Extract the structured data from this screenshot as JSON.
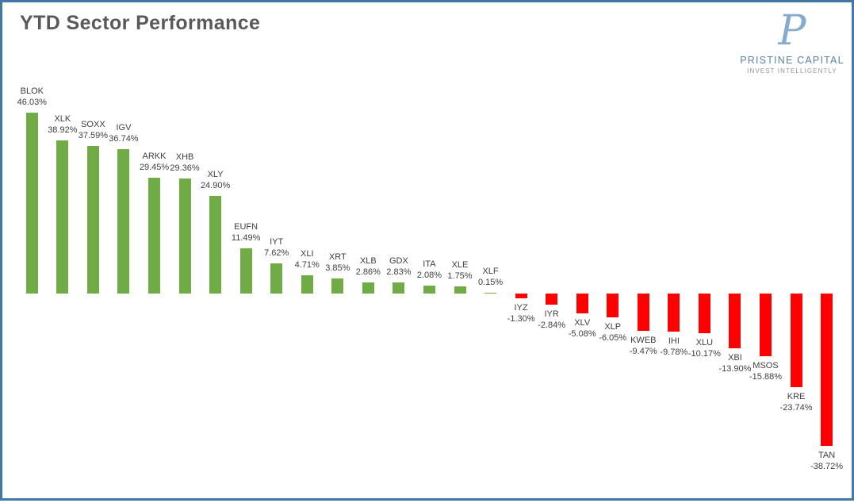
{
  "page": {
    "title": "YTD Sector Performance",
    "title_color": "#595959",
    "border_color": "#4377A6",
    "background": "#FFFFFF"
  },
  "logo": {
    "monogram": "P",
    "company": "PRISTINE CAPITAL",
    "tagline": "INVEST INTELLIGENTLY",
    "monogram_color": "#85ABCD",
    "company_color": "#5C81A6",
    "tagline_color": "#8E959C"
  },
  "chart_data": {
    "type": "bar",
    "title": "YTD Sector Performance",
    "xlabel": "",
    "ylabel": "",
    "unit": "%",
    "grid": false,
    "legend": false,
    "axes_visible": false,
    "ylim": [
      -40,
      50
    ],
    "positive_color": "#6FAC46",
    "negative_color": "#FF0000",
    "label_color": "#3F3F3F",
    "categories": [
      "BLOK",
      "XLK",
      "SOXX",
      "IGV",
      "ARKK",
      "XHB",
      "XLY",
      "EUFN",
      "IYT",
      "XLI",
      "XRT",
      "XLB",
      "GDX",
      "ITA",
      "XLE",
      "XLF",
      "IYZ",
      "IYR",
      "XLV",
      "XLP",
      "KWEB",
      "IHI",
      "XLU",
      "XBI",
      "MSOS",
      "KRE",
      "TAN"
    ],
    "values": [
      46.03,
      38.92,
      37.59,
      36.74,
      29.45,
      29.36,
      24.9,
      11.49,
      7.62,
      4.71,
      3.85,
      2.86,
      2.83,
      2.08,
      1.75,
      0.15,
      -1.3,
      -2.84,
      -5.08,
      -6.05,
      -9.47,
      -9.78,
      -10.17,
      -13.9,
      -15.88,
      -23.74,
      -38.72
    ],
    "value_labels": [
      "46.03%",
      "38.92%",
      "37.59%",
      "36.74%",
      "29.45%",
      "29.36%",
      "24.90%",
      "11.49%",
      "7.62%",
      "4.71%",
      "3.85%",
      "2.86%",
      "2.83%",
      "2.08%",
      "1.75%",
      "0.15%",
      "-1.30%",
      "-2.84%",
      "-5.08%",
      "-6.05%",
      "-9.47%",
      "-9.78%",
      "-10.17%",
      "-13.90%",
      "-15.88%",
      "-23.74%",
      "-38.72%"
    ]
  }
}
